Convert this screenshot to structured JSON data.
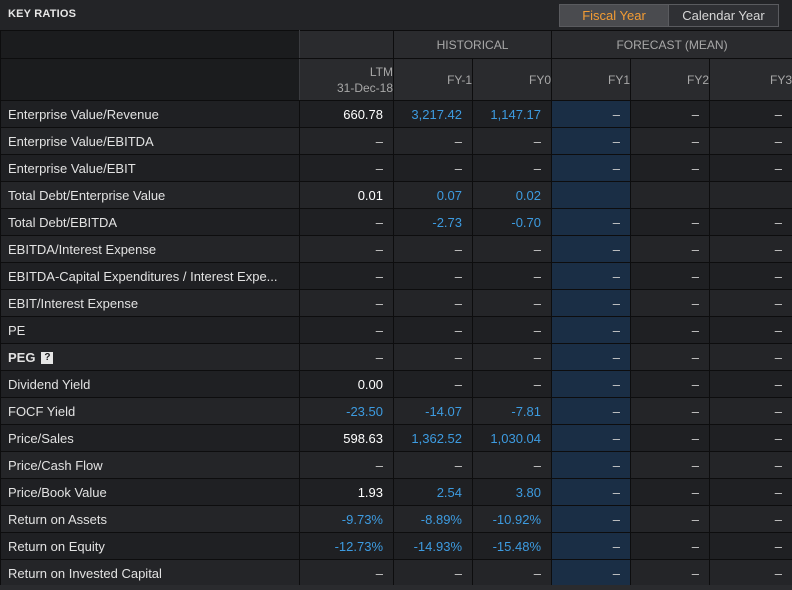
{
  "header": {
    "title": "KEY RATIOS",
    "toggle": {
      "active": "Fiscal Year",
      "inactive": "Calendar Year"
    }
  },
  "columns": {
    "groups": {
      "historical": "HISTORICAL",
      "forecast": "FORECAST (MEAN)"
    },
    "ltm_line1": "LTM",
    "ltm_line2": "31-Dec-18",
    "fy_1": "FY-1",
    "fy0": "FY0",
    "fy1": "FY1",
    "fy2": "FY2",
    "fy3": "FY3"
  },
  "rows": [
    {
      "label": "Enterprise Value/Revenue",
      "cells": [
        "660.78",
        "3,217.42",
        "1,147.17",
        "–",
        "–",
        "–"
      ]
    },
    {
      "label": "Enterprise Value/EBITDA",
      "cells": [
        "–",
        "–",
        "–",
        "–",
        "–",
        "–"
      ]
    },
    {
      "label": "Enterprise Value/EBIT",
      "cells": [
        "–",
        "–",
        "–",
        "–",
        "–",
        "–"
      ]
    },
    {
      "label": "Total Debt/Enterprise Value",
      "cells": [
        "0.01",
        "0.07",
        "0.02",
        "",
        "",
        ""
      ]
    },
    {
      "label": "Total Debt/EBITDA",
      "cells": [
        "–",
        "-2.73",
        "-0.70",
        "–",
        "–",
        "–"
      ]
    },
    {
      "label": "EBITDA/Interest Expense",
      "cells": [
        "–",
        "–",
        "–",
        "–",
        "–",
        "–"
      ]
    },
    {
      "label": "EBITDA-Capital Expenditures / Interest Expe...",
      "cells": [
        "–",
        "–",
        "–",
        "–",
        "–",
        "–"
      ]
    },
    {
      "label": "EBIT/Interest Expense",
      "cells": [
        "–",
        "–",
        "–",
        "–",
        "–",
        "–"
      ]
    },
    {
      "label": "PE",
      "cells": [
        "–",
        "–",
        "–",
        "–",
        "–",
        "–"
      ]
    },
    {
      "label": "PEG",
      "help": "?",
      "cells": [
        "–",
        "–",
        "–",
        "–",
        "–",
        "–"
      ]
    },
    {
      "label": "Dividend Yield",
      "cells": [
        "0.00",
        "–",
        "–",
        "–",
        "–",
        "–"
      ]
    },
    {
      "label": "FOCF Yield",
      "cells": [
        "-23.50",
        "-14.07",
        "-7.81",
        "–",
        "–",
        "–"
      ]
    },
    {
      "label": "Price/Sales",
      "cells": [
        "598.63",
        "1,362.52",
        "1,030.04",
        "–",
        "–",
        "–"
      ]
    },
    {
      "label": "Price/Cash Flow",
      "cells": [
        "–",
        "–",
        "–",
        "–",
        "–",
        "–"
      ]
    },
    {
      "label": "Price/Book Value",
      "cells": [
        "1.93",
        "2.54",
        "3.80",
        "–",
        "–",
        "–"
      ]
    },
    {
      "label": "Return on Assets",
      "cells": [
        "-9.73%",
        "-8.89%",
        "-10.92%",
        "–",
        "–",
        "–"
      ]
    },
    {
      "label": "Return on Equity",
      "cells": [
        "-12.73%",
        "-14.93%",
        "-15.48%",
        "–",
        "–",
        "–"
      ]
    },
    {
      "label": "Return on Invested Capital",
      "cells": [
        "–",
        "–",
        "–",
        "–",
        "–",
        "–"
      ]
    }
  ],
  "colors": {
    "background": "#1b1c1e",
    "accent_orange": "#f39c34",
    "value_blue": "#3d9be0",
    "forecast_highlight": "#1a2e45"
  },
  "icons": {
    "help": "question-mark-icon"
  }
}
